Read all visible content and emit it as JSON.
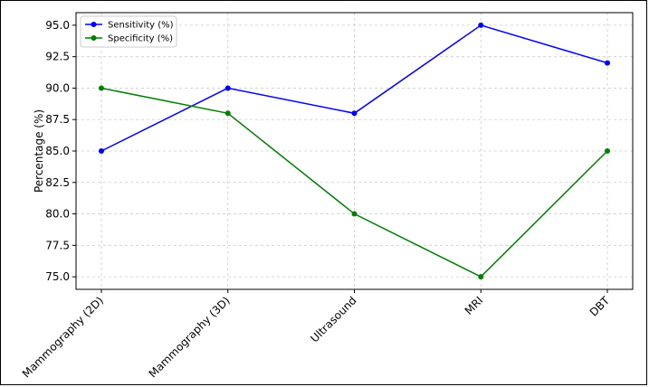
{
  "chart_data": {
    "type": "line",
    "categories": [
      "Mammography (2D)",
      "Mammography (3D)",
      "Ultrasound",
      "MRI",
      "DBT"
    ],
    "series": [
      {
        "name": "Sensitivity (%)",
        "values": [
          85,
          90,
          88,
          95,
          92
        ],
        "color": "#0000ff"
      },
      {
        "name": "Specificity (%)",
        "values": [
          90,
          88,
          80,
          75,
          85
        ],
        "color": "#008000"
      }
    ],
    "ylabel": "Percentage (%)",
    "xlabel": "",
    "ylim": [
      74.0,
      96.0
    ],
    "yticks": [
      "75.0",
      "77.5",
      "80.0",
      "82.5",
      "85.0",
      "87.5",
      "90.0",
      "92.5",
      "95.0"
    ],
    "grid": true,
    "legend_position": "top-left"
  }
}
